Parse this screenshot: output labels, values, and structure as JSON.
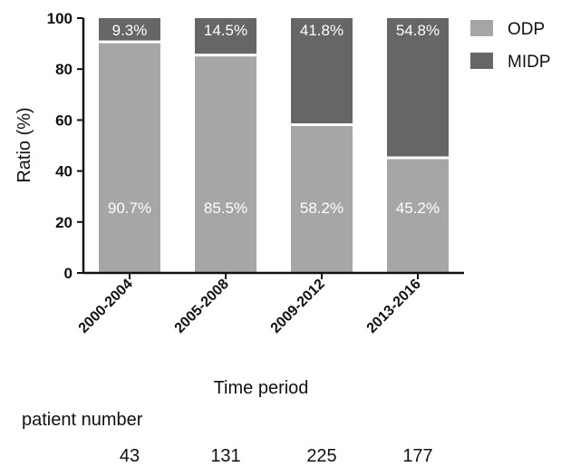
{
  "chart_data": {
    "type": "bar",
    "stacked": true,
    "categories": [
      "2000-2004",
      "2005-2008",
      "2009-2012",
      "2013-2016"
    ],
    "series": [
      {
        "name": "ODP",
        "values": [
          90.7,
          85.5,
          58.2,
          45.2
        ],
        "labels": [
          "90.7%",
          "85.5%",
          "58.2%",
          "45.2%"
        ],
        "color": "#a6a6a6"
      },
      {
        "name": "MIDP",
        "values": [
          9.3,
          14.5,
          41.8,
          54.8
        ],
        "labels": [
          "9.3%",
          "14.5%",
          "41.8%",
          "54.8%"
        ],
        "color": "#666666"
      }
    ],
    "xlabel": "Time period",
    "ylabel": "Ratio (%)",
    "ylim": [
      0,
      100
    ],
    "yticks": [
      "0",
      "20",
      "40",
      "60",
      "80",
      "100"
    ],
    "legend_position": "top-right",
    "grid": false
  },
  "patient_number": {
    "label": "patient number",
    "values": [
      "43",
      "131",
      "225",
      "177"
    ]
  }
}
